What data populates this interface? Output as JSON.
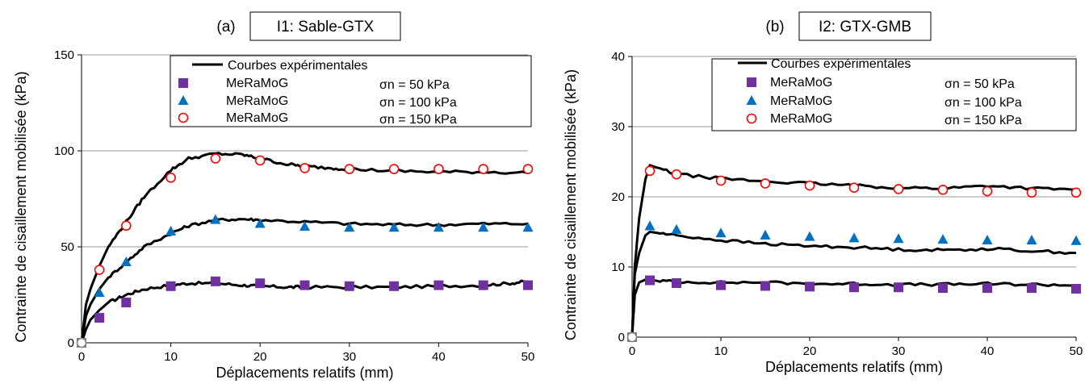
{
  "chart_data": [
    {
      "type": "line",
      "panel_label": "(a)",
      "title": "I1: Sable-GTX",
      "xlabel": "Déplacements relatifs (mm)",
      "ylabel": "Contrainte de cisaillement mobilisée (kPa)",
      "xlim": [
        0,
        50
      ],
      "ylim": [
        0,
        150
      ],
      "x_ticks": [
        "0",
        "10",
        "20",
        "30",
        "40",
        "50"
      ],
      "y_ticks": [
        "0",
        "50",
        "100",
        "150"
      ],
      "grid": "horizontal",
      "legend_position": "top-right",
      "legend": [
        {
          "label": "Courbes expérimentales",
          "cond": ""
        },
        {
          "label": "MeRaMoG",
          "cond": "σn = 50 kPa"
        },
        {
          "label": "MeRaMoG",
          "cond": "σn = 100 kPa"
        },
        {
          "label": "MeRaMoG",
          "cond": "σn = 150 kPa"
        }
      ],
      "experimental_curves": [
        {
          "sigma_n": "50",
          "x": [
            0,
            0.5,
            1,
            2,
            3,
            5,
            7,
            10,
            12,
            15,
            18,
            20,
            23,
            25,
            30,
            35,
            40,
            45,
            48,
            50
          ],
          "y": [
            0,
            7,
            12,
            17,
            21,
            25,
            28,
            30,
            31,
            31,
            30,
            29.5,
            29,
            29,
            29,
            29,
            29.5,
            30,
            31,
            32
          ]
        },
        {
          "sigma_n": "100",
          "x": [
            0,
            0.5,
            1,
            2,
            3,
            5,
            7,
            10,
            12,
            15,
            18,
            20,
            25,
            30,
            35,
            40,
            45,
            50
          ],
          "y": [
            0,
            14,
            20,
            28,
            34,
            42,
            50,
            57,
            61,
            64,
            64.5,
            64,
            63,
            62,
            61.5,
            61.5,
            62,
            62
          ]
        },
        {
          "sigma_n": "150",
          "x": [
            0,
            0.5,
            1,
            2,
            3,
            5,
            7,
            10,
            12,
            15,
            18,
            20,
            23,
            25,
            28,
            30,
            35,
            40,
            45,
            50
          ],
          "y": [
            0,
            20,
            28,
            40,
            50,
            63,
            76,
            90,
            96,
            98.5,
            98,
            96,
            93,
            92,
            91,
            90.5,
            89.5,
            89,
            89,
            88.5
          ]
        }
      ],
      "model_series": [
        {
          "name": "MeRaMoG",
          "sigma_n": "σn = 50 kPa",
          "marker": "square",
          "color": "#7030A0",
          "x": [
            0,
            2,
            5,
            10,
            15,
            20,
            25,
            30,
            35,
            40,
            45,
            50
          ],
          "y": [
            0,
            13,
            21,
            29.5,
            32,
            31,
            30,
            29.5,
            29.5,
            30,
            30,
            30
          ]
        },
        {
          "name": "MeRaMoG",
          "sigma_n": "σn = 100 kPa",
          "marker": "triangle",
          "color": "#0070C0",
          "x": [
            0,
            2,
            5,
            10,
            15,
            20,
            25,
            30,
            35,
            40,
            45,
            50
          ],
          "y": [
            0,
            26,
            42,
            58,
            64,
            62,
            60.5,
            60,
            60,
            60,
            60,
            60
          ]
        },
        {
          "name": "MeRaMoG",
          "sigma_n": "σn = 150 kPa",
          "marker": "circle-open",
          "color": "#FF0000",
          "x": [
            0,
            2,
            5,
            10,
            15,
            20,
            25,
            30,
            35,
            40,
            45,
            50
          ],
          "y": [
            0,
            38,
            61,
            86,
            96,
            95,
            91,
            90.5,
            90.5,
            90.5,
            90.5,
            90.5
          ]
        }
      ]
    },
    {
      "type": "line",
      "panel_label": "(b)",
      "title": "I2: GTX-GMB",
      "xlabel": "Déplacements relatifs (mm)",
      "ylabel": "Contrainte de cisaillement mobilisée (kPa)",
      "xlim": [
        0,
        50
      ],
      "ylim": [
        0,
        40
      ],
      "x_ticks": [
        "0",
        "10",
        "20",
        "30",
        "40",
        "50"
      ],
      "y_ticks": [
        "0",
        "10",
        "20",
        "30",
        "40"
      ],
      "grid": "horizontal",
      "legend_position": "top-right",
      "legend": [
        {
          "label": "Courbes expérimentales",
          "cond": ""
        },
        {
          "label": "MeRaMoG",
          "cond": "σn = 50 kPa"
        },
        {
          "label": "MeRaMoG",
          "cond": "σn = 100 kPa"
        },
        {
          "label": "MeRaMoG",
          "cond": "σn = 150 kPa"
        }
      ],
      "experimental_curves": [
        {
          "sigma_n": "50",
          "x": [
            0,
            0.3,
            0.8,
            1.5,
            2,
            5,
            10,
            15,
            20,
            25,
            30,
            35,
            40,
            45,
            50
          ],
          "y": [
            0,
            6,
            7.8,
            8.2,
            8.1,
            7.9,
            7.8,
            7.8,
            7.6,
            7.6,
            7.5,
            7.5,
            7.6,
            7.5,
            7.4
          ]
        },
        {
          "sigma_n": "100",
          "x": [
            0,
            0.3,
            0.8,
            1.5,
            2,
            5,
            10,
            15,
            20,
            25,
            30,
            35,
            40,
            45,
            50
          ],
          "y": [
            0,
            9,
            12,
            14.5,
            15,
            14.5,
            13.8,
            13.3,
            13,
            12.8,
            12.5,
            12.4,
            12.6,
            12.3,
            12
          ]
        },
        {
          "sigma_n": "150",
          "x": [
            0,
            0.3,
            0.8,
            1.5,
            2,
            5,
            10,
            15,
            20,
            25,
            30,
            35,
            40,
            45,
            50
          ],
          "y": [
            0,
            10,
            17,
            22.5,
            24.5,
            23.2,
            22.6,
            22.2,
            21.9,
            21.6,
            21.3,
            21.2,
            21.6,
            21.2,
            21
          ]
        }
      ],
      "model_series": [
        {
          "name": "MeRaMoG",
          "sigma_n": "σn = 50 kPa",
          "marker": "square",
          "color": "#7030A0",
          "x": [
            0,
            2,
            5,
            10,
            15,
            20,
            25,
            30,
            35,
            40,
            45,
            50
          ],
          "y": [
            0,
            8.1,
            7.7,
            7.4,
            7.3,
            7.2,
            7.1,
            7.1,
            7,
            7,
            7,
            6.9
          ]
        },
        {
          "name": "MeRaMoG",
          "sigma_n": "σn = 100 kPa",
          "marker": "triangle",
          "color": "#0070C0",
          "x": [
            0,
            2,
            5,
            10,
            15,
            20,
            25,
            30,
            35,
            40,
            45,
            50
          ],
          "y": [
            0,
            15.8,
            15.3,
            14.8,
            14.5,
            14.3,
            14.1,
            14,
            13.9,
            13.8,
            13.8,
            13.7
          ]
        },
        {
          "name": "MeRaMoG",
          "sigma_n": "σn = 150 kPa",
          "marker": "circle-open",
          "color": "#FF0000",
          "x": [
            0,
            2,
            5,
            10,
            15,
            20,
            25,
            30,
            35,
            40,
            45,
            50
          ],
          "y": [
            0,
            23.7,
            23.2,
            22.3,
            21.9,
            21.6,
            21.3,
            21.1,
            21,
            20.8,
            20.6,
            20.6
          ]
        }
      ]
    }
  ]
}
